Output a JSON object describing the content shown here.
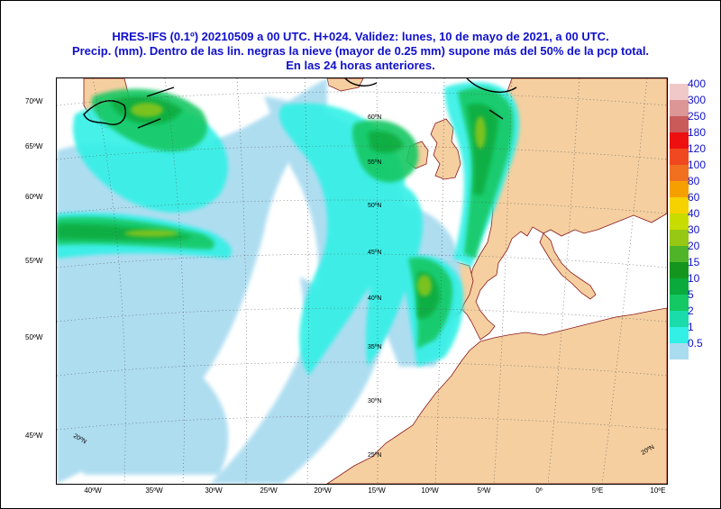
{
  "title": {
    "line1": "HRES-IFS (0.1º) 20210509 a 00 UTC.  H+024. Validez: lunes, 10 de mayo de 2021,  a  00 UTC.",
    "line2": "Precip. (mm). Dentro de las lin. negras la nieve (mayor de 0.25 mm) supone más del 50% de la pcp total.",
    "line3": "En las 24 horas anteriores."
  },
  "map": {
    "left_lat_labels": [
      "70ºW",
      "65ºW",
      "60ºW",
      "55ºW",
      "50ºW",
      "45ºW"
    ],
    "bottom_lon_labels": [
      "40ºW",
      "35ºW",
      "30ºW",
      "25ºW",
      "20ºW",
      "15ºW",
      "10ºW",
      "5ºW",
      "0º",
      "5ºE",
      "10ºE"
    ],
    "inner_lat_labels": [
      "60ºN",
      "55ºN",
      "50ºN",
      "45ºN",
      "40ºN",
      "35ºN",
      "30ºN",
      "25ºN"
    ],
    "corner_labels": [
      "20ºN",
      "20ºN"
    ],
    "colors": {
      "ocean": "#ffffff",
      "land": "#f5cfa0",
      "border": "#6b1a1a",
      "coast": "#8b1a1a",
      "snow_line": "#000000",
      "grid": "#555555"
    }
  },
  "legend": {
    "labels": [
      "400",
      "300",
      "250",
      "180",
      "120",
      "100",
      "80",
      "60",
      "40",
      "30",
      "20",
      "15",
      "10",
      "5",
      "2",
      "1",
      "0.5"
    ],
    "colors": [
      "#f0c8c8",
      "#dc9696",
      "#c85a5a",
      "#ee1010",
      "#f04820",
      "#f07020",
      "#f5a000",
      "#f5d200",
      "#c8dc00",
      "#96c814",
      "#50b428",
      "#14961e",
      "#0aaa3c",
      "#14c864",
      "#19dcaa",
      "#32f0e6",
      "#aadcf0"
    ]
  }
}
